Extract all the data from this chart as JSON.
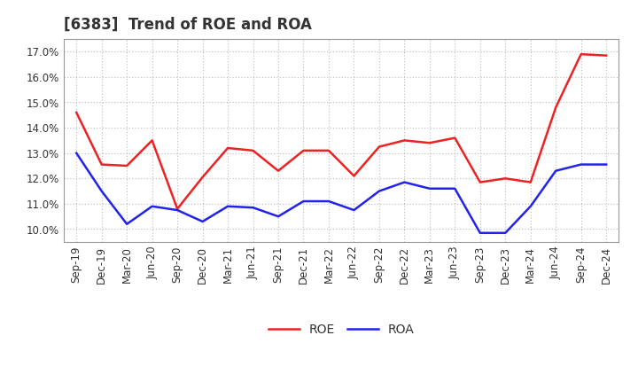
{
  "title": "[6383]  Trend of ROE and ROA",
  "x_labels": [
    "Sep-19",
    "Dec-19",
    "Mar-20",
    "Jun-20",
    "Sep-20",
    "Dec-20",
    "Mar-21",
    "Jun-21",
    "Sep-21",
    "Dec-21",
    "Mar-22",
    "Jun-22",
    "Sep-22",
    "Dec-22",
    "Mar-23",
    "Jun-23",
    "Sep-23",
    "Dec-23",
    "Mar-24",
    "Jun-24",
    "Sep-24",
    "Dec-24"
  ],
  "roe": [
    14.6,
    12.55,
    12.5,
    13.5,
    10.8,
    12.05,
    13.2,
    13.1,
    12.3,
    13.1,
    13.1,
    12.1,
    13.25,
    13.5,
    13.4,
    13.6,
    11.85,
    12.0,
    11.85,
    14.8,
    16.9,
    16.85
  ],
  "roa": [
    13.0,
    11.5,
    10.2,
    10.9,
    10.75,
    10.3,
    10.9,
    10.85,
    10.5,
    11.1,
    11.1,
    10.75,
    11.5,
    11.85,
    11.6,
    11.6,
    9.85,
    9.85,
    10.9,
    12.3,
    12.55,
    12.55
  ],
  "roe_color": "#ee2222",
  "roa_color": "#2222ee",
  "ylim_min": 9.5,
  "ylim_max": 17.5,
  "yticks": [
    10.0,
    11.0,
    12.0,
    13.0,
    14.0,
    15.0,
    16.0,
    17.0
  ],
  "background_color": "#ffffff",
  "grid_color": "#aaaaaa",
  "title_fontsize": 12,
  "tick_fontsize": 8.5,
  "legend_fontsize": 10
}
